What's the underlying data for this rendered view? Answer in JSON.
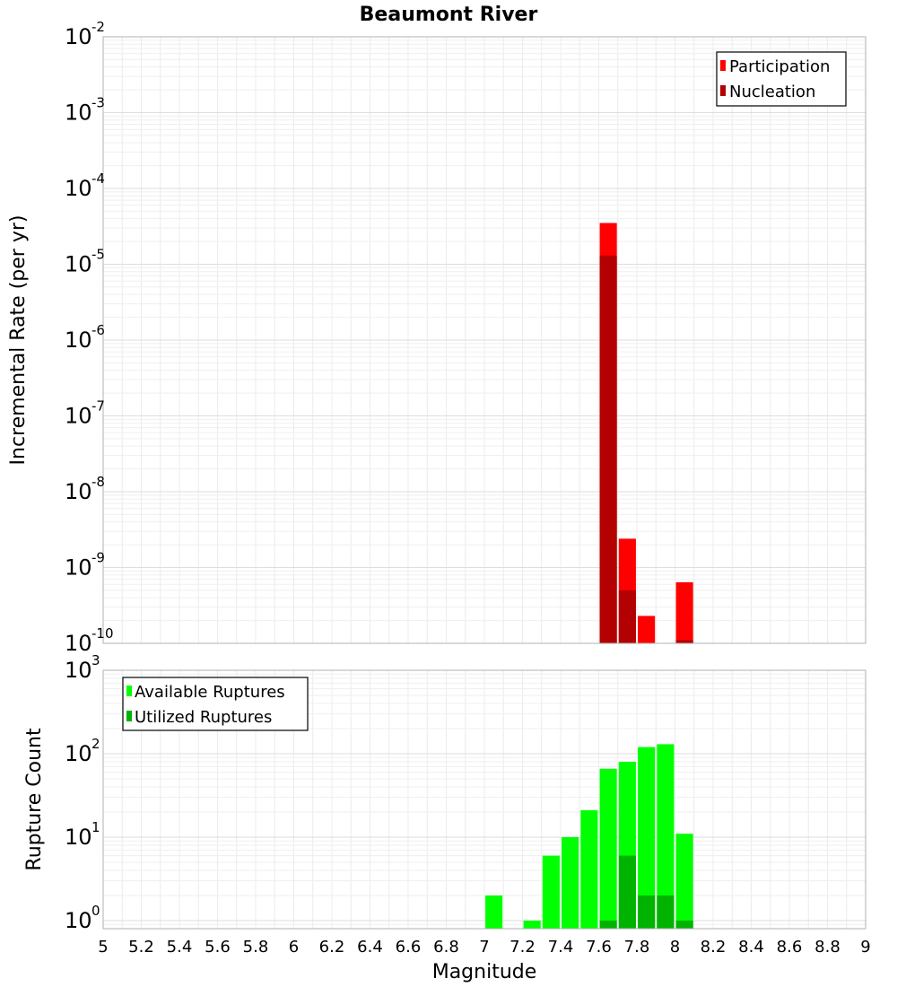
{
  "chart_data": {
    "title": "Beaumont River",
    "xlabel": "Magnitude",
    "x_ticks": [
      "5",
      "5.2",
      "5.4",
      "5.6",
      "5.8",
      "6",
      "6.2",
      "6.4",
      "6.6",
      "6.8",
      "7",
      "7.2",
      "7.4",
      "7.6",
      "7.8",
      "8",
      "8.2",
      "8.4",
      "8.6",
      "8.8",
      "9"
    ],
    "xlim": [
      5,
      9
    ],
    "panels": [
      {
        "type": "bar",
        "ylabel": "Incremental Rate (per yr)",
        "yscale": "log",
        "ylim": [
          1e-10,
          0.01
        ],
        "y_tick_exponents": [
          "-10",
          "-9",
          "-8",
          "-7",
          "-6",
          "-5",
          "-4",
          "-3",
          "-2"
        ],
        "legend_position": "top-right",
        "grid": true,
        "series": [
          {
            "name": "Participation",
            "color": "#ff0000",
            "x": [
              7.65,
              7.75,
              7.85,
              8.05
            ],
            "values": [
              3.5e-05,
              2.4e-09,
              2.3e-10,
              6.4e-10
            ]
          },
          {
            "name": "Nucleation",
            "color": "#b30000",
            "x": [
              7.65,
              7.75,
              8.05
            ],
            "values": [
              1.3e-05,
              5e-10,
              1.1e-10
            ]
          }
        ]
      },
      {
        "type": "bar",
        "ylabel": "Rupture Count",
        "yscale": "log",
        "ylim": [
          0.8,
          1000
        ],
        "y_tick_exponents": [
          "0",
          "1",
          "2",
          "3"
        ],
        "legend_position": "top-left",
        "grid": true,
        "series": [
          {
            "name": "Available Ruptures",
            "color": "#00ff00",
            "x": [
              7.05,
              7.25,
              7.35,
              7.45,
              7.55,
              7.65,
              7.75,
              7.85,
              7.95,
              8.05
            ],
            "values": [
              2,
              1,
              6,
              10,
              21,
              66,
              80,
              120,
              130,
              11
            ]
          },
          {
            "name": "Utilized Ruptures",
            "color": "#00b300",
            "x": [
              7.65,
              7.75,
              7.85,
              7.95,
              8.05
            ],
            "values": [
              1,
              6,
              2,
              2,
              1
            ]
          }
        ]
      }
    ]
  }
}
